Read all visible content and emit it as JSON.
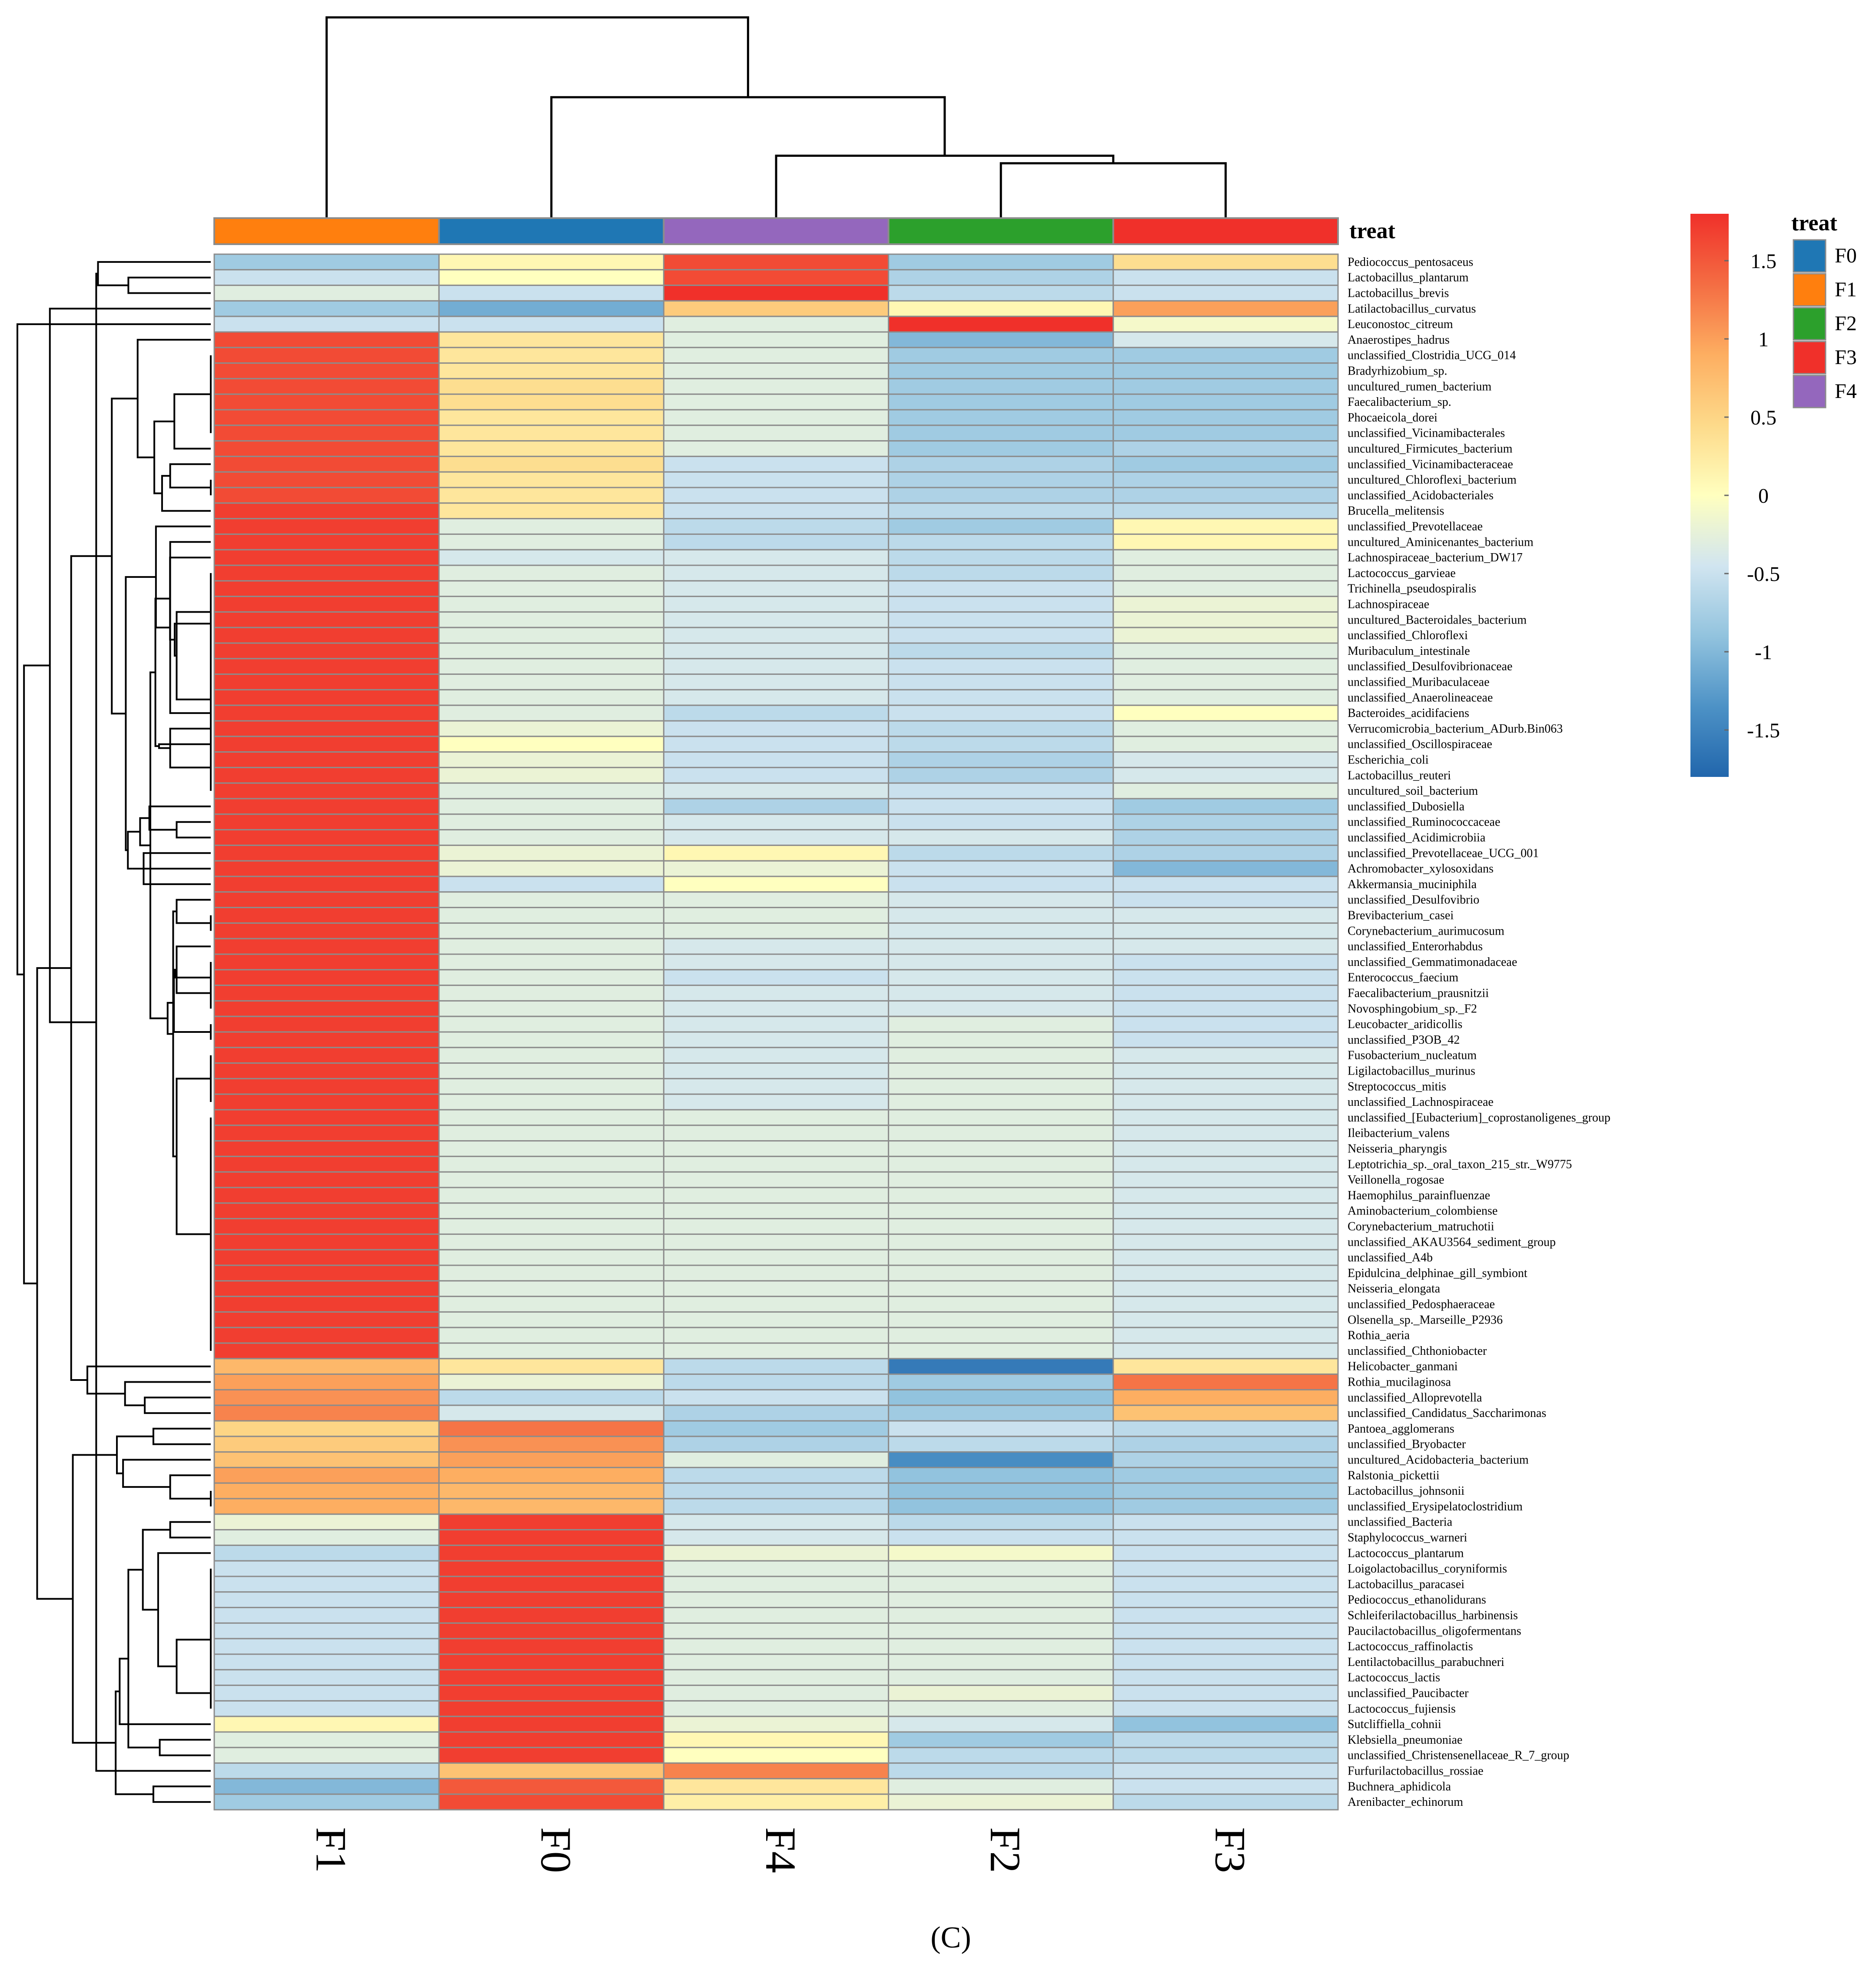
{
  "chart_data": {
    "type": "heatmap",
    "annotation_title": "treat",
    "panel_label": "(C)",
    "columns": [
      "F1",
      "F0",
      "F4",
      "F2",
      "F3"
    ],
    "annotation": {
      "F1": "#FF7F0E",
      "F0": "#1F77B4",
      "F4": "#9467BD",
      "F2": "#2CA02C",
      "F3": "#F0302A"
    },
    "legend_annotation": [
      {
        "label": "F0",
        "color": "#1F77B4"
      },
      {
        "label": "F1",
        "color": "#FF7F0E"
      },
      {
        "label": "F2",
        "color": "#2CA02C"
      },
      {
        "label": "F3",
        "color": "#F0302A"
      },
      {
        "label": "F4",
        "color": "#9467BD"
      }
    ],
    "color_scale": {
      "min": -1.8,
      "max": 1.8,
      "stops": [
        "#2166AC",
        "#4D92C6",
        "#92C3DE",
        "#D1E5F0",
        "#FFFFBF",
        "#FDDA8A",
        "#FDAE61",
        "#F46D43",
        "#F0302A"
      ],
      "ticks": [
        {
          "value": 1.5,
          "label": "1.5"
        },
        {
          "value": 1,
          "label": "1"
        },
        {
          "value": 0.5,
          "label": "0.5"
        },
        {
          "value": 0,
          "label": "0"
        },
        {
          "value": -0.5,
          "label": "-0.5"
        },
        {
          "value": -1,
          "label": "-1"
        },
        {
          "value": -1.5,
          "label": "-1.5"
        }
      ]
    },
    "rows": [
      {
        "name": "Pediococcus_pentosaceus",
        "values": [
          -0.8,
          0.1,
          1.6,
          -0.8,
          0.4
        ]
      },
      {
        "name": "Lactobacillus_plantarum",
        "values": [
          -0.5,
          0.0,
          1.6,
          -0.7,
          -0.5
        ]
      },
      {
        "name": "Lactobacillus_brevis",
        "values": [
          -0.3,
          -0.5,
          1.8,
          -0.6,
          -0.5
        ]
      },
      {
        "name": "Latilactobacillus_curvatus",
        "values": [
          -0.8,
          -1.1,
          0.6,
          0.1,
          1.0
        ]
      },
      {
        "name": "Leuconostoc_citreum",
        "values": [
          -0.5,
          -0.5,
          -0.3,
          1.8,
          -0.1
        ]
      },
      {
        "name": "Anaerostipes_hadrus",
        "values": [
          1.6,
          0.3,
          -0.3,
          -1.0,
          -0.4
        ]
      },
      {
        "name": "unclassified_Clostridia_UCG_014",
        "values": [
          1.6,
          0.3,
          -0.3,
          -0.8,
          -0.8
        ]
      },
      {
        "name": "Bradyrhizobium_sp.",
        "values": [
          1.6,
          0.3,
          -0.3,
          -0.8,
          -0.8
        ]
      },
      {
        "name": "uncultured_rumen_bacterium",
        "values": [
          1.6,
          0.4,
          -0.3,
          -0.8,
          -0.8
        ]
      },
      {
        "name": "Faecalibacterium_sp.",
        "values": [
          1.6,
          0.4,
          -0.3,
          -0.8,
          -0.8
        ]
      },
      {
        "name": "Phocaeicola_dorei",
        "values": [
          1.6,
          0.3,
          -0.3,
          -0.8,
          -0.8
        ]
      },
      {
        "name": "unclassified_Vicinamibacterales",
        "values": [
          1.6,
          0.3,
          -0.3,
          -0.8,
          -0.8
        ]
      },
      {
        "name": "uncultured_Firmicutes_bacterium",
        "values": [
          1.6,
          0.3,
          -0.3,
          -0.8,
          -0.7
        ]
      },
      {
        "name": "unclassified_Vicinamibacteraceae",
        "values": [
          1.6,
          0.4,
          -0.5,
          -0.7,
          -0.8
        ]
      },
      {
        "name": "uncultured_Chloroflexi_bacterium",
        "values": [
          1.6,
          0.3,
          -0.5,
          -0.7,
          -0.7
        ]
      },
      {
        "name": "unclassified_Acidobacteriales",
        "values": [
          1.6,
          0.3,
          -0.5,
          -0.7,
          -0.7
        ]
      },
      {
        "name": "Brucella_melitensis",
        "values": [
          1.7,
          0.3,
          -0.5,
          -0.6,
          -0.6
        ]
      },
      {
        "name": "unclassified_Prevotellaceae",
        "values": [
          1.7,
          -0.3,
          -0.6,
          -0.8,
          0.1
        ]
      },
      {
        "name": "uncultured_Aminicenantes_bacterium",
        "values": [
          1.7,
          -0.3,
          -0.6,
          -0.6,
          0.1
        ]
      },
      {
        "name": "Lachnospiraceae_bacterium_DW17",
        "values": [
          1.7,
          -0.4,
          -0.4,
          -0.6,
          -0.3
        ]
      },
      {
        "name": "Lactococcus_garvieae",
        "values": [
          1.7,
          -0.3,
          -0.4,
          -0.6,
          -0.3
        ]
      },
      {
        "name": "Trichinella_pseudospiralis",
        "values": [
          1.7,
          -0.3,
          -0.4,
          -0.5,
          -0.3
        ]
      },
      {
        "name": "Lachnospiraceae",
        "values": [
          1.7,
          -0.3,
          -0.4,
          -0.5,
          -0.2
        ]
      },
      {
        "name": "uncultured_Bacteroidales_bacterium",
        "values": [
          1.7,
          -0.3,
          -0.4,
          -0.5,
          -0.2
        ]
      },
      {
        "name": "unclassified_Chloroflexi",
        "values": [
          1.7,
          -0.3,
          -0.4,
          -0.5,
          -0.2
        ]
      },
      {
        "name": "Muribaculum_intestinale",
        "values": [
          1.7,
          -0.3,
          -0.4,
          -0.6,
          -0.3
        ]
      },
      {
        "name": "unclassified_Desulfovibrionaceae",
        "values": [
          1.7,
          -0.3,
          -0.4,
          -0.5,
          -0.3
        ]
      },
      {
        "name": "unclassified_Muribaculaceae",
        "values": [
          1.7,
          -0.3,
          -0.4,
          -0.5,
          -0.3
        ]
      },
      {
        "name": "unclassified_Anaerolineaceae",
        "values": [
          1.7,
          -0.3,
          -0.4,
          -0.5,
          -0.3
        ]
      },
      {
        "name": "Bacteroides_acidifaciens",
        "values": [
          1.7,
          -0.3,
          -0.6,
          -0.5,
          0.0
        ]
      },
      {
        "name": "Verrucomicrobia_bacterium_ADurb.Bin063",
        "values": [
          1.7,
          -0.2,
          -0.5,
          -0.6,
          -0.3
        ]
      },
      {
        "name": "unclassified_Oscillospiraceae",
        "values": [
          1.7,
          0.0,
          -0.5,
          -0.6,
          -0.3
        ]
      },
      {
        "name": "Escherichia_coli",
        "values": [
          1.7,
          -0.2,
          -0.5,
          -0.7,
          -0.4
        ]
      },
      {
        "name": "Lactobacillus_reuteri",
        "values": [
          1.7,
          -0.2,
          -0.5,
          -0.7,
          -0.4
        ]
      },
      {
        "name": "uncultured_soil_bacterium",
        "values": [
          1.7,
          -0.3,
          -0.4,
          -0.5,
          -0.3
        ]
      },
      {
        "name": "unclassified_Dubosiella",
        "values": [
          1.7,
          -0.3,
          -0.7,
          -0.5,
          -0.8
        ]
      },
      {
        "name": "unclassified_Ruminococcaceae",
        "values": [
          1.7,
          -0.3,
          -0.4,
          -0.5,
          -0.7
        ]
      },
      {
        "name": "unclassified_Acidimicrobiia",
        "values": [
          1.7,
          -0.3,
          -0.4,
          -0.4,
          -0.7
        ]
      },
      {
        "name": "unclassified_Prevotellaceae_UCG_001",
        "values": [
          1.7,
          -0.2,
          0.1,
          -0.6,
          -0.7
        ]
      },
      {
        "name": "Achromobacter_xylosoxidans",
        "values": [
          1.7,
          -0.2,
          -0.2,
          -0.5,
          -1.0
        ]
      },
      {
        "name": "Akkermansia_muciniphila",
        "values": [
          1.7,
          -0.5,
          0.0,
          -0.5,
          -0.5
        ]
      },
      {
        "name": "unclassified_Desulfovibrio",
        "values": [
          1.7,
          -0.3,
          -0.3,
          -0.4,
          -0.5
        ]
      },
      {
        "name": "Brevibacterium_casei",
        "values": [
          1.7,
          -0.3,
          -0.3,
          -0.4,
          -0.4
        ]
      },
      {
        "name": "Corynebacterium_aurimucosum",
        "values": [
          1.7,
          -0.3,
          -0.3,
          -0.4,
          -0.4
        ]
      },
      {
        "name": "unclassified_Enterorhabdus",
        "values": [
          1.7,
          -0.3,
          -0.4,
          -0.4,
          -0.4
        ]
      },
      {
        "name": "unclassified_Gemmatimonadaceae",
        "values": [
          1.7,
          -0.3,
          -0.4,
          -0.4,
          -0.5
        ]
      },
      {
        "name": "Enterococcus_faecium",
        "values": [
          1.7,
          -0.3,
          -0.5,
          -0.4,
          -0.5
        ]
      },
      {
        "name": "Faecalibacterium_prausnitzii",
        "values": [
          1.7,
          -0.3,
          -0.4,
          -0.4,
          -0.5
        ]
      },
      {
        "name": "Novosphingobium_sp._F2",
        "values": [
          1.7,
          -0.3,
          -0.4,
          -0.4,
          -0.5
        ]
      },
      {
        "name": "Leucobacter_aridicollis",
        "values": [
          1.7,
          -0.3,
          -0.4,
          -0.3,
          -0.5
        ]
      },
      {
        "name": "unclassified_P3OB_42",
        "values": [
          1.7,
          -0.3,
          -0.4,
          -0.3,
          -0.5
        ]
      },
      {
        "name": "Fusobacterium_nucleatum",
        "values": [
          1.7,
          -0.3,
          -0.4,
          -0.3,
          -0.4
        ]
      },
      {
        "name": "Ligilactobacillus_murinus",
        "values": [
          1.7,
          -0.3,
          -0.4,
          -0.3,
          -0.4
        ]
      },
      {
        "name": "Streptococcus_mitis",
        "values": [
          1.7,
          -0.3,
          -0.4,
          -0.3,
          -0.4
        ]
      },
      {
        "name": "unclassified_Lachnospiraceae",
        "values": [
          1.7,
          -0.3,
          -0.4,
          -0.3,
          -0.4
        ]
      },
      {
        "name": "unclassified_[Eubacterium]_coprostanoligenes_group",
        "values": [
          1.7,
          -0.3,
          -0.3,
          -0.3,
          -0.4
        ]
      },
      {
        "name": "Ileibacterium_valens",
        "values": [
          1.7,
          -0.3,
          -0.3,
          -0.3,
          -0.4
        ]
      },
      {
        "name": "Neisseria_pharyngis",
        "values": [
          1.7,
          -0.3,
          -0.3,
          -0.3,
          -0.4
        ]
      },
      {
        "name": "Leptotrichia_sp._oral_taxon_215_str._W9775",
        "values": [
          1.7,
          -0.3,
          -0.3,
          -0.3,
          -0.4
        ]
      },
      {
        "name": "Veillonella_rogosae",
        "values": [
          1.7,
          -0.3,
          -0.3,
          -0.3,
          -0.4
        ]
      },
      {
        "name": "Haemophilus_parainfluenzae",
        "values": [
          1.7,
          -0.3,
          -0.3,
          -0.3,
          -0.4
        ]
      },
      {
        "name": "Aminobacterium_colombiense",
        "values": [
          1.7,
          -0.3,
          -0.3,
          -0.3,
          -0.4
        ]
      },
      {
        "name": "Corynebacterium_matruchotii",
        "values": [
          1.7,
          -0.3,
          -0.3,
          -0.3,
          -0.4
        ]
      },
      {
        "name": "unclassified_AKAU3564_sediment_group",
        "values": [
          1.7,
          -0.3,
          -0.3,
          -0.3,
          -0.4
        ]
      },
      {
        "name": "unclassified_A4b",
        "values": [
          1.7,
          -0.3,
          -0.3,
          -0.3,
          -0.4
        ]
      },
      {
        "name": "Epidulcina_delphinae_gill_symbiont",
        "values": [
          1.7,
          -0.3,
          -0.3,
          -0.3,
          -0.4
        ]
      },
      {
        "name": "Neisseria_elongata",
        "values": [
          1.7,
          -0.3,
          -0.3,
          -0.3,
          -0.4
        ]
      },
      {
        "name": "unclassified_Pedosphaeraceae",
        "values": [
          1.7,
          -0.3,
          -0.3,
          -0.3,
          -0.4
        ]
      },
      {
        "name": "Olsenella_sp._Marseille_P2936",
        "values": [
          1.7,
          -0.3,
          -0.3,
          -0.3,
          -0.4
        ]
      },
      {
        "name": "Rothia_aeria",
        "values": [
          1.7,
          -0.3,
          -0.3,
          -0.3,
          -0.4
        ]
      },
      {
        "name": "unclassified_Chthoniobacter",
        "values": [
          1.7,
          -0.3,
          -0.3,
          -0.3,
          -0.4
        ]
      },
      {
        "name": "Helicobacter_ganmani",
        "values": [
          0.8,
          0.3,
          -0.6,
          -1.6,
          0.3
        ]
      },
      {
        "name": "Rothia_mucilaginosa",
        "values": [
          1.0,
          -0.2,
          -0.6,
          -0.8,
          1.3
        ]
      },
      {
        "name": "unclassified_Alloprevotella",
        "values": [
          1.1,
          -0.6,
          -0.5,
          -0.9,
          0.9
        ]
      },
      {
        "name": "unclassified_Candidatus_Saccharimonas",
        "values": [
          1.2,
          -0.4,
          -0.7,
          -0.8,
          0.7
        ]
      },
      {
        "name": "Pantoea_agglomerans",
        "values": [
          0.5,
          1.3,
          -0.8,
          -0.5,
          -0.6
        ]
      },
      {
        "name": "unclassified_Bryobacter",
        "values": [
          0.6,
          1.1,
          -0.7,
          -0.6,
          -0.7
        ]
      },
      {
        "name": "uncultured_Acidobacteria_bacterium",
        "values": [
          0.7,
          1.0,
          -0.3,
          -1.4,
          -0.7
        ]
      },
      {
        "name": "Ralstonia_pickettii",
        "values": [
          1.0,
          0.9,
          -0.6,
          -0.9,
          -0.8
        ]
      },
      {
        "name": "Lactobacillus_johnsonii",
        "values": [
          0.9,
          0.8,
          -0.6,
          -0.9,
          -0.8
        ]
      },
      {
        "name": "unclassified_Erysipelatoclostridium",
        "values": [
          0.9,
          0.8,
          -0.6,
          -0.9,
          -0.8
        ]
      },
      {
        "name": "unclassified_Bacteria",
        "values": [
          -0.2,
          1.7,
          -0.4,
          -0.6,
          -0.5
        ]
      },
      {
        "name": "Staphylococcus_warneri",
        "values": [
          -0.3,
          1.7,
          -0.4,
          -0.5,
          -0.5
        ]
      },
      {
        "name": "Lactococcus_plantarum",
        "values": [
          -0.6,
          1.7,
          -0.2,
          -0.1,
          -0.5
        ]
      },
      {
        "name": "Loigolactobacillus_coryniformis",
        "values": [
          -0.5,
          1.7,
          -0.3,
          -0.3,
          -0.5
        ]
      },
      {
        "name": "Lactobacillus_paracasei",
        "values": [
          -0.5,
          1.7,
          -0.3,
          -0.3,
          -0.5
        ]
      },
      {
        "name": "Pediococcus_ethanolidurans",
        "values": [
          -0.5,
          1.7,
          -0.3,
          -0.3,
          -0.5
        ]
      },
      {
        "name": "Schleiferilactobacillus_harbinensis",
        "values": [
          -0.5,
          1.7,
          -0.3,
          -0.3,
          -0.5
        ]
      },
      {
        "name": "Paucilactobacillus_oligofermentans",
        "values": [
          -0.5,
          1.7,
          -0.3,
          -0.3,
          -0.5
        ]
      },
      {
        "name": "Lactococcus_raffinolactis",
        "values": [
          -0.5,
          1.7,
          -0.3,
          -0.3,
          -0.5
        ]
      },
      {
        "name": "Lentilactobacillus_parabuchneri",
        "values": [
          -0.5,
          1.7,
          -0.3,
          -0.3,
          -0.5
        ]
      },
      {
        "name": "Lactococcus_lactis",
        "values": [
          -0.5,
          1.7,
          -0.3,
          -0.3,
          -0.5
        ]
      },
      {
        "name": "unclassified_Paucibacter",
        "values": [
          -0.5,
          1.7,
          -0.3,
          -0.2,
          -0.5
        ]
      },
      {
        "name": "Lactococcus_fujiensis",
        "values": [
          -0.5,
          1.7,
          -0.3,
          -0.3,
          -0.5
        ]
      },
      {
        "name": "Sutcliffiella_cohnii",
        "values": [
          0.1,
          1.7,
          -0.2,
          -0.4,
          -0.9
        ]
      },
      {
        "name": "Klebsiella_pneumoniae",
        "values": [
          -0.3,
          1.7,
          0.1,
          -0.8,
          -0.6
        ]
      },
      {
        "name": "unclassified_Christensenellaceae_R_7_group",
        "values": [
          -0.3,
          1.7,
          0.0,
          -0.6,
          -0.6
        ]
      },
      {
        "name": "Furfurilactobacillus_rossiae",
        "values": [
          -0.6,
          0.7,
          1.2,
          -0.6,
          -0.5
        ]
      },
      {
        "name": "Buchnera_aphidicola",
        "values": [
          -1.0,
          1.5,
          0.3,
          -0.3,
          -0.5
        ]
      },
      {
        "name": "Arenibacter_echinorum",
        "values": [
          -0.8,
          1.6,
          0.2,
          -0.2,
          -0.6
        ]
      }
    ]
  }
}
